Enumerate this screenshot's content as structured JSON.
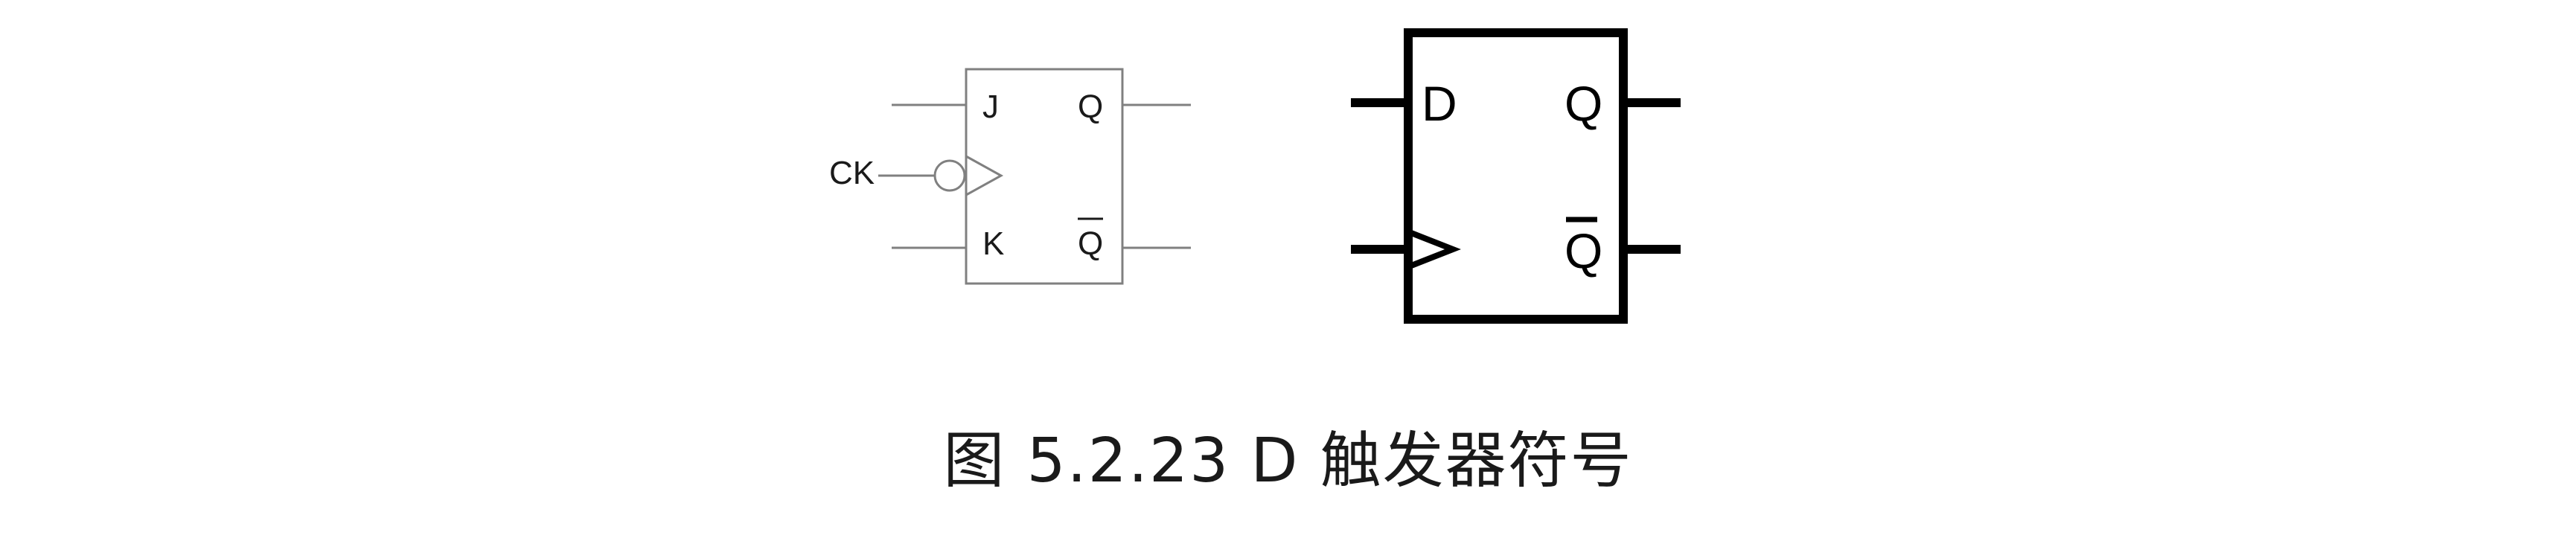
{
  "jk_flipflop": {
    "pins": {
      "j": "J",
      "k": "K",
      "q": "Q",
      "q_bar": "Q",
      "clock": "CK"
    },
    "clock_edge": "falling",
    "stroke_color": "#808080"
  },
  "d_flipflop": {
    "pins": {
      "d": "D",
      "q": "Q",
      "q_bar": "Q"
    },
    "clock_edge": "rising",
    "stroke_color": "#000000"
  },
  "caption": {
    "text": "图 5.2.23  D 触发器符号"
  }
}
